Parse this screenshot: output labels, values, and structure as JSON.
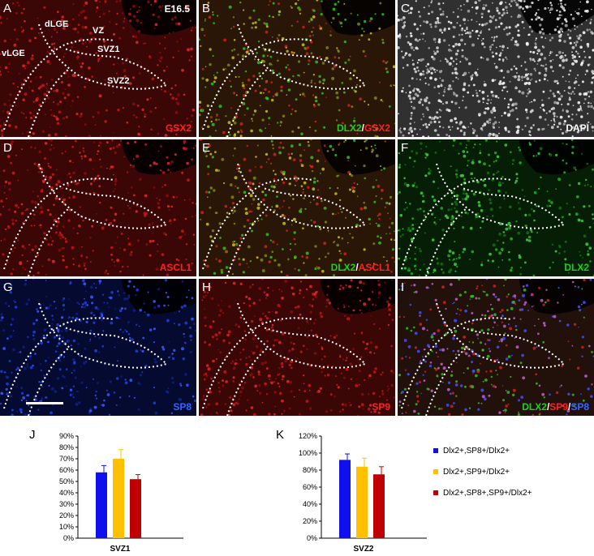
{
  "panels": [
    {
      "letter": "A",
      "stain": [
        {
          "text": "GSX2",
          "color": "#ff2020"
        }
      ],
      "bg": "red"
    },
    {
      "letter": "B",
      "stain": [
        {
          "text": "DLX2",
          "color": "#22cc22"
        },
        {
          "text": "/",
          "color": "#ffffff"
        },
        {
          "text": "GSX2",
          "color": "#ff2020"
        }
      ],
      "bg": "merge"
    },
    {
      "letter": "C",
      "stain": [
        {
          "text": "DAPI",
          "color": "#ffffff"
        }
      ],
      "bg": "dapi"
    },
    {
      "letter": "D",
      "stain": [
        {
          "text": "ASCL1",
          "color": "#ff2020"
        }
      ],
      "bg": "red"
    },
    {
      "letter": "E",
      "stain": [
        {
          "text": "DLX2",
          "color": "#22cc22"
        },
        {
          "text": "/",
          "color": "#ffffff"
        },
        {
          "text": "ASCL1",
          "color": "#ff2020"
        }
      ],
      "bg": "merge"
    },
    {
      "letter": "F",
      "stain": [
        {
          "text": "DLX2",
          "color": "#22cc22"
        }
      ],
      "bg": "green"
    },
    {
      "letter": "G",
      "stain": [
        {
          "text": "SP8",
          "color": "#3366ff"
        }
      ],
      "bg": "blue"
    },
    {
      "letter": "H",
      "stain": [
        {
          "text": "SP9",
          "color": "#ff2020"
        }
      ],
      "bg": "red"
    },
    {
      "letter": "I",
      "stain": [
        {
          "text": "DLX2",
          "color": "#22cc22"
        },
        {
          "text": "/",
          "color": "#ffffff"
        },
        {
          "text": "SP9",
          "color": "#ff2020"
        },
        {
          "text": "/",
          "color": "#ffffff"
        },
        {
          "text": "SP8",
          "color": "#3366ff"
        }
      ],
      "bg": "triple"
    }
  ],
  "regions": {
    "dlge": "dLGE",
    "vz": "VZ",
    "vlge": "vLGE",
    "svz1": "SVZ1",
    "svz2": "SVZ2",
    "stage": "E16.5"
  },
  "chart_letters": {
    "j": "J",
    "k": "K"
  },
  "legend": [
    {
      "label": "Dlx2+,SP8+/Dlx2+",
      "color": "#1010ee"
    },
    {
      "label": "Dlx2+,SP9+/Dlx2+",
      "color": "#ffc000"
    },
    {
      "label": "Dlx2+,SP8+,SP9+/Dlx2+",
      "color": "#c00000"
    }
  ],
  "chart_data": [
    {
      "type": "bar",
      "xlabel": "SVZ1",
      "yticks": [
        "0%",
        "10%",
        "20%",
        "30%",
        "40%",
        "50%",
        "60%",
        "70%",
        "80%",
        "90%"
      ],
      "ylim": [
        0,
        90
      ],
      "series": [
        {
          "name": "Dlx2+,SP8+/Dlx2+",
          "values": [
            58
          ],
          "error": [
            6
          ],
          "color": "#1010ee"
        },
        {
          "name": "Dlx2+,SP9+/Dlx2+",
          "values": [
            70
          ],
          "error": [
            8
          ],
          "color": "#ffc000"
        },
        {
          "name": "Dlx2+,SP8+,SP9+/Dlx2+",
          "values": [
            52
          ],
          "error": [
            4
          ],
          "color": "#c00000"
        }
      ]
    },
    {
      "type": "bar",
      "xlabel": "SVZ2",
      "yticks": [
        "0%",
        "20%",
        "40%",
        "60%",
        "80%",
        "100%",
        "120%"
      ],
      "ylim": [
        0,
        120
      ],
      "series": [
        {
          "name": "Dlx2+,SP8+/Dlx2+",
          "values": [
            92
          ],
          "error": [
            7
          ],
          "color": "#1010ee"
        },
        {
          "name": "Dlx2+,SP9+/Dlx2+",
          "values": [
            84
          ],
          "error": [
            10
          ],
          "color": "#ffc000"
        },
        {
          "name": "Dlx2+,SP8+,SP9+/Dlx2+",
          "values": [
            75
          ],
          "error": [
            9
          ],
          "color": "#c00000"
        }
      ]
    }
  ]
}
